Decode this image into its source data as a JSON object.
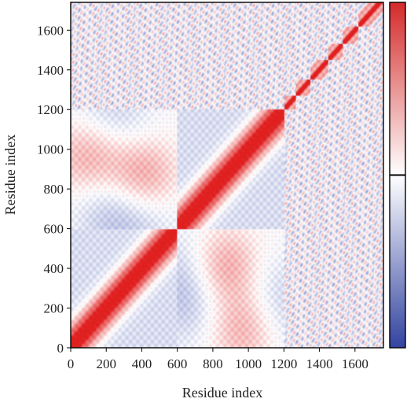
{
  "chart_data": {
    "type": "heatmap",
    "title": "",
    "xlabel": "Residue index",
    "ylabel": "Residue index",
    "xlim": [
      0,
      1760
    ],
    "ylim": [
      0,
      1740
    ],
    "x_ticks": [
      0,
      200,
      400,
      600,
      800,
      1000,
      1200,
      1400,
      1600
    ],
    "y_ticks": [
      0,
      200,
      400,
      600,
      800,
      1000,
      1200,
      1400,
      1600
    ],
    "domains": [
      {
        "start": 0,
        "end": 600
      },
      {
        "start": 600,
        "end": 1200
      },
      {
        "start": 1200,
        "end": 1270
      },
      {
        "start": 1270,
        "end": 1350
      },
      {
        "start": 1350,
        "end": 1450
      },
      {
        "start": 1450,
        "end": 1530
      },
      {
        "start": 1530,
        "end": 1620
      },
      {
        "start": 1620,
        "end": 1740
      }
    ],
    "grid": false,
    "colorbar": {
      "position": "right",
      "colors": [
        "#3343a0",
        "#ffffff",
        "#d42a2a"
      ],
      "marker_fraction": 0.5
    },
    "colors": {
      "positive": "#e01f1f",
      "negative": "#3c4fb0",
      "neutral": "#ffffff"
    }
  }
}
